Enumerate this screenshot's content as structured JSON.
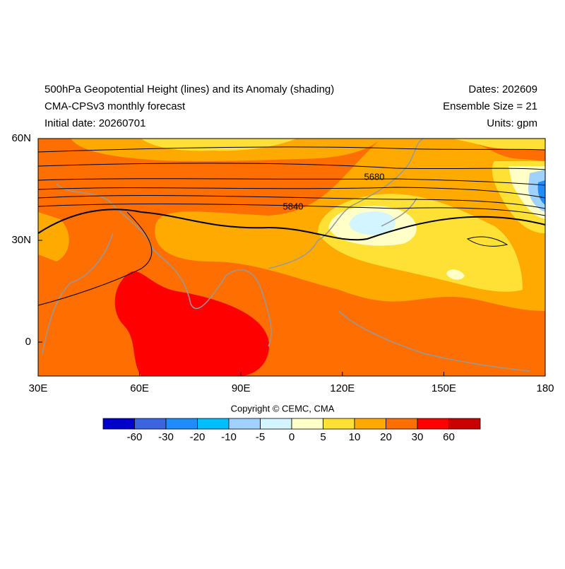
{
  "header": {
    "title": "500hPa Geopotential Height (lines) and its Anomaly (shading)",
    "subtitle": "CMA-CPSv3 monthly forecast",
    "initial_date": "Initial date: 20260701",
    "dates": "Dates: 202609",
    "ensemble": "Ensemble Size = 21",
    "units": "Units: gpm"
  },
  "map": {
    "lat_labels": [
      "60N",
      "30N",
      "0"
    ],
    "lon_labels": [
      "30E",
      "60E",
      "90E",
      "120E",
      "150E",
      "180"
    ],
    "contour_labels": [
      "5680",
      "5840"
    ]
  },
  "copyright": "Copyright © CEMC, CMA",
  "colorbar": {
    "colors": [
      "#0000cd",
      "#3c64e0",
      "#1e8cff",
      "#00bfff",
      "#a0d2ff",
      "#d2f5ff",
      "#ffffc8",
      "#ffe135",
      "#ffaa00",
      "#ff6e00",
      "#ff0000",
      "#c80000"
    ],
    "labels": [
      -60,
      -30,
      -20,
      -10,
      -5,
      0,
      5,
      10,
      20,
      30,
      60
    ]
  }
}
